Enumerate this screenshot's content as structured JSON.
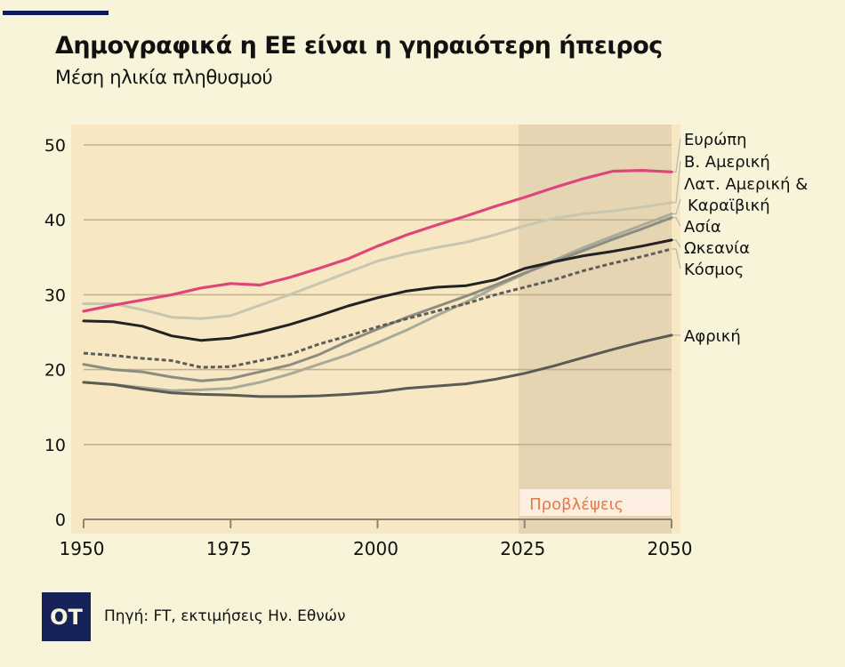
{
  "header": {
    "title": "Δημογραφικά η ΕΕ είναι η γηραιότερη ήπειρος",
    "subtitle": "Μέση ηλικία πληθυσμού"
  },
  "footer": {
    "logo_text": "OT",
    "source": "Πηγή: FT, εκτιμήσεις Ην. Εθνών"
  },
  "colors": {
    "background": "#f8f4d9",
    "plot_background": "#f7e7c3",
    "forecast_shade": "#e6d5b3",
    "accent_bar": "#0f1a5c",
    "europe": "#e0457a",
    "forecast_text": "#e47a47"
  },
  "chart_data": {
    "type": "line",
    "title": "Δημογραφικά η ΕΕ είναι η γηραιότερη ήπειρος",
    "subtitle": "Μέση ηλικία πληθυσμού",
    "xlabel": "",
    "ylabel": "",
    "xlim": [
      1950,
      2050
    ],
    "ylim": [
      0,
      50
    ],
    "x_ticks": [
      1950,
      1975,
      2000,
      2025,
      2050
    ],
    "y_ticks": [
      0,
      10,
      20,
      30,
      40,
      50
    ],
    "grid": true,
    "legend_placement": "right (direct labels)",
    "annotation": {
      "label": "Προβλέψεις",
      "from_year": 2024,
      "to_year": 2050
    },
    "x": [
      1950,
      1955,
      1960,
      1965,
      1970,
      1975,
      1980,
      1985,
      1990,
      1995,
      2000,
      2005,
      2010,
      2015,
      2020,
      2025,
      2030,
      2035,
      2040,
      2045,
      2050
    ],
    "series": [
      {
        "name": "Ευρώπη",
        "color": "#e0457a",
        "style": "solid",
        "values": [
          27.8,
          28.6,
          29.3,
          30.0,
          30.9,
          31.5,
          31.3,
          32.3,
          33.5,
          34.8,
          36.5,
          38.0,
          39.3,
          40.5,
          41.8,
          43.0,
          44.3,
          45.5,
          46.5,
          46.6,
          46.4
        ]
      },
      {
        "name": "Β. Αμερική",
        "color": "#c9c6b0",
        "style": "solid",
        "values": [
          28.8,
          28.8,
          28.0,
          27.0,
          26.8,
          27.2,
          28.6,
          30.0,
          31.5,
          33.0,
          34.5,
          35.5,
          36.3,
          37.0,
          38.0,
          39.2,
          40.2,
          40.8,
          41.2,
          41.7,
          42.3
        ]
      },
      {
        "name": "Λατ. Αμερική & Καραϊβική",
        "color": "#a9ab9a",
        "style": "solid",
        "values": [
          18.3,
          18.0,
          17.6,
          17.2,
          17.3,
          17.5,
          18.3,
          19.4,
          20.7,
          22.0,
          23.6,
          25.3,
          27.2,
          29.0,
          31.0,
          32.8,
          34.6,
          36.3,
          37.8,
          39.3,
          40.8
        ]
      },
      {
        "name": "Ασία",
        "color": "#8c8d80",
        "style": "solid",
        "values": [
          20.7,
          20.0,
          19.7,
          19.0,
          18.5,
          18.8,
          19.7,
          20.6,
          22.0,
          23.8,
          25.4,
          27.0,
          28.4,
          29.8,
          31.3,
          32.9,
          34.4,
          35.9,
          37.4,
          38.8,
          40.3
        ]
      },
      {
        "name": "Ωκεανία",
        "color": "#222222",
        "style": "solid",
        "values": [
          26.5,
          26.4,
          25.8,
          24.5,
          23.9,
          24.2,
          25.0,
          26.0,
          27.2,
          28.5,
          29.6,
          30.5,
          31.0,
          31.2,
          32.0,
          33.5,
          34.4,
          35.2,
          35.8,
          36.5,
          37.3
        ]
      },
      {
        "name": "Κόσμος",
        "color": "#5e5e58",
        "style": "dashed",
        "values": [
          22.2,
          21.9,
          21.5,
          21.2,
          20.3,
          20.4,
          21.2,
          22.0,
          23.4,
          24.5,
          25.7,
          26.8,
          27.8,
          28.8,
          30.0,
          31.0,
          32.0,
          33.2,
          34.2,
          35.1,
          36.1
        ]
      },
      {
        "name": "Αφρική",
        "color": "#5a5b55",
        "style": "solid",
        "values": [
          18.3,
          18.0,
          17.4,
          16.9,
          16.7,
          16.6,
          16.4,
          16.4,
          16.5,
          16.7,
          17.0,
          17.5,
          17.8,
          18.1,
          18.7,
          19.5,
          20.5,
          21.6,
          22.7,
          23.7,
          24.6
        ]
      }
    ]
  }
}
